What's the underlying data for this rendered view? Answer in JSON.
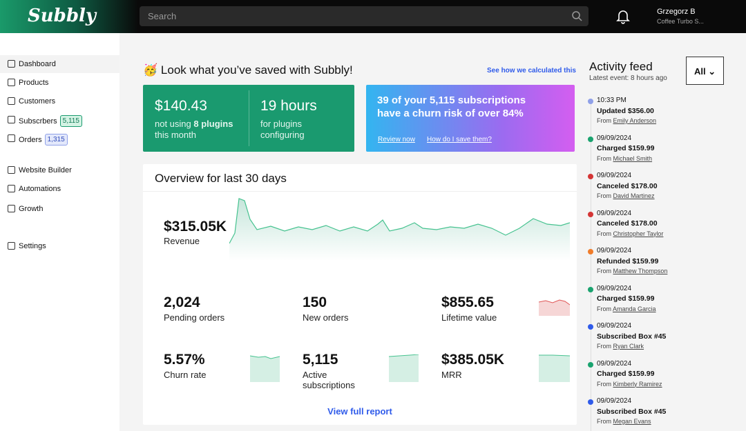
{
  "header": {
    "logo": "Subbly",
    "search_placeholder": "Search",
    "user_name": "Grzegorz B",
    "user_company": "Coffee Turbo S..."
  },
  "sidebar": {
    "items": [
      {
        "label": "Dashboard"
      },
      {
        "label": "Products"
      },
      {
        "label": "Customers"
      },
      {
        "label": "Subscrbers",
        "badge": "5,115"
      },
      {
        "label": "Orders",
        "badge": "1,315"
      },
      {
        "label": "Website Builder"
      },
      {
        "label": "Automations"
      },
      {
        "label": "Growth"
      },
      {
        "label": "Settings"
      }
    ]
  },
  "savings": {
    "emoji": "🥳",
    "title": "Look what you’ve saved with Subbly!",
    "link": "See how we calculated this",
    "cards": [
      {
        "value": "$140.43",
        "line1_prefix": "not using",
        "line1_bold": "8 plugins",
        "line2": "this month"
      },
      {
        "value": "19 hours",
        "line1": "for plugins",
        "line2": "configuring"
      }
    ],
    "churn": {
      "text": "39 of your 5,115 subscriptions have a churn risk of over 84%",
      "links": [
        "Review now",
        "How do I save them?"
      ]
    }
  },
  "overview": {
    "title": "Overview for last 30 days",
    "revenue": {
      "value": "$315.05K",
      "label": "Revenue"
    },
    "metrics": [
      {
        "value": "2,024",
        "label": "Pending orders"
      },
      {
        "value": "150",
        "label": "New orders"
      },
      {
        "value": "$855.65",
        "label": "Lifetime value"
      },
      {
        "value": "5.57%",
        "label": "Churn rate"
      },
      {
        "value": "5,115",
        "label": "Active subscriptions"
      },
      {
        "value": "$385.05K",
        "label": "MRR"
      }
    ],
    "link": "View full report"
  },
  "activity": {
    "title": "Activity feed",
    "subtitle": "Latest event: 8 hours ago",
    "filter": "All",
    "from_label": "From",
    "events": [
      {
        "time": "10:33 PM",
        "action": "Updated $356.00",
        "name": "Emily Anderson",
        "color": "#8fa0e8"
      },
      {
        "time": "09/09/2024",
        "action": "Charged $159.99",
        "name": "Michael Smith",
        "color": "#1aa36f"
      },
      {
        "time": "09/09/2024",
        "action": "Canceled $178.00",
        "name": "David Martinez",
        "color": "#d43535"
      },
      {
        "time": "09/09/2024",
        "action": "Canceled $178.00",
        "name": "Christopher Taylor",
        "color": "#d43535"
      },
      {
        "time": "09/09/2024",
        "action": "Refunded $159.99",
        "name": "Matthew Thompson",
        "color": "#f07c2a"
      },
      {
        "time": "09/09/2024",
        "action": "Charged $159.99",
        "name": "Amanda Garcia",
        "color": "#1aa36f"
      },
      {
        "time": "09/09/2024",
        "action": "Subscribed Box #45",
        "name": "Ryan Clark",
        "color": "#2f5bea"
      },
      {
        "time": "09/09/2024",
        "action": "Charged $159.99",
        "name": "Kimberly Ramirez",
        "color": "#1aa36f"
      },
      {
        "time": "09/09/2024",
        "action": "Subscribed Box #45",
        "name": "Megan Evans",
        "color": "#2f5bea"
      }
    ]
  }
}
